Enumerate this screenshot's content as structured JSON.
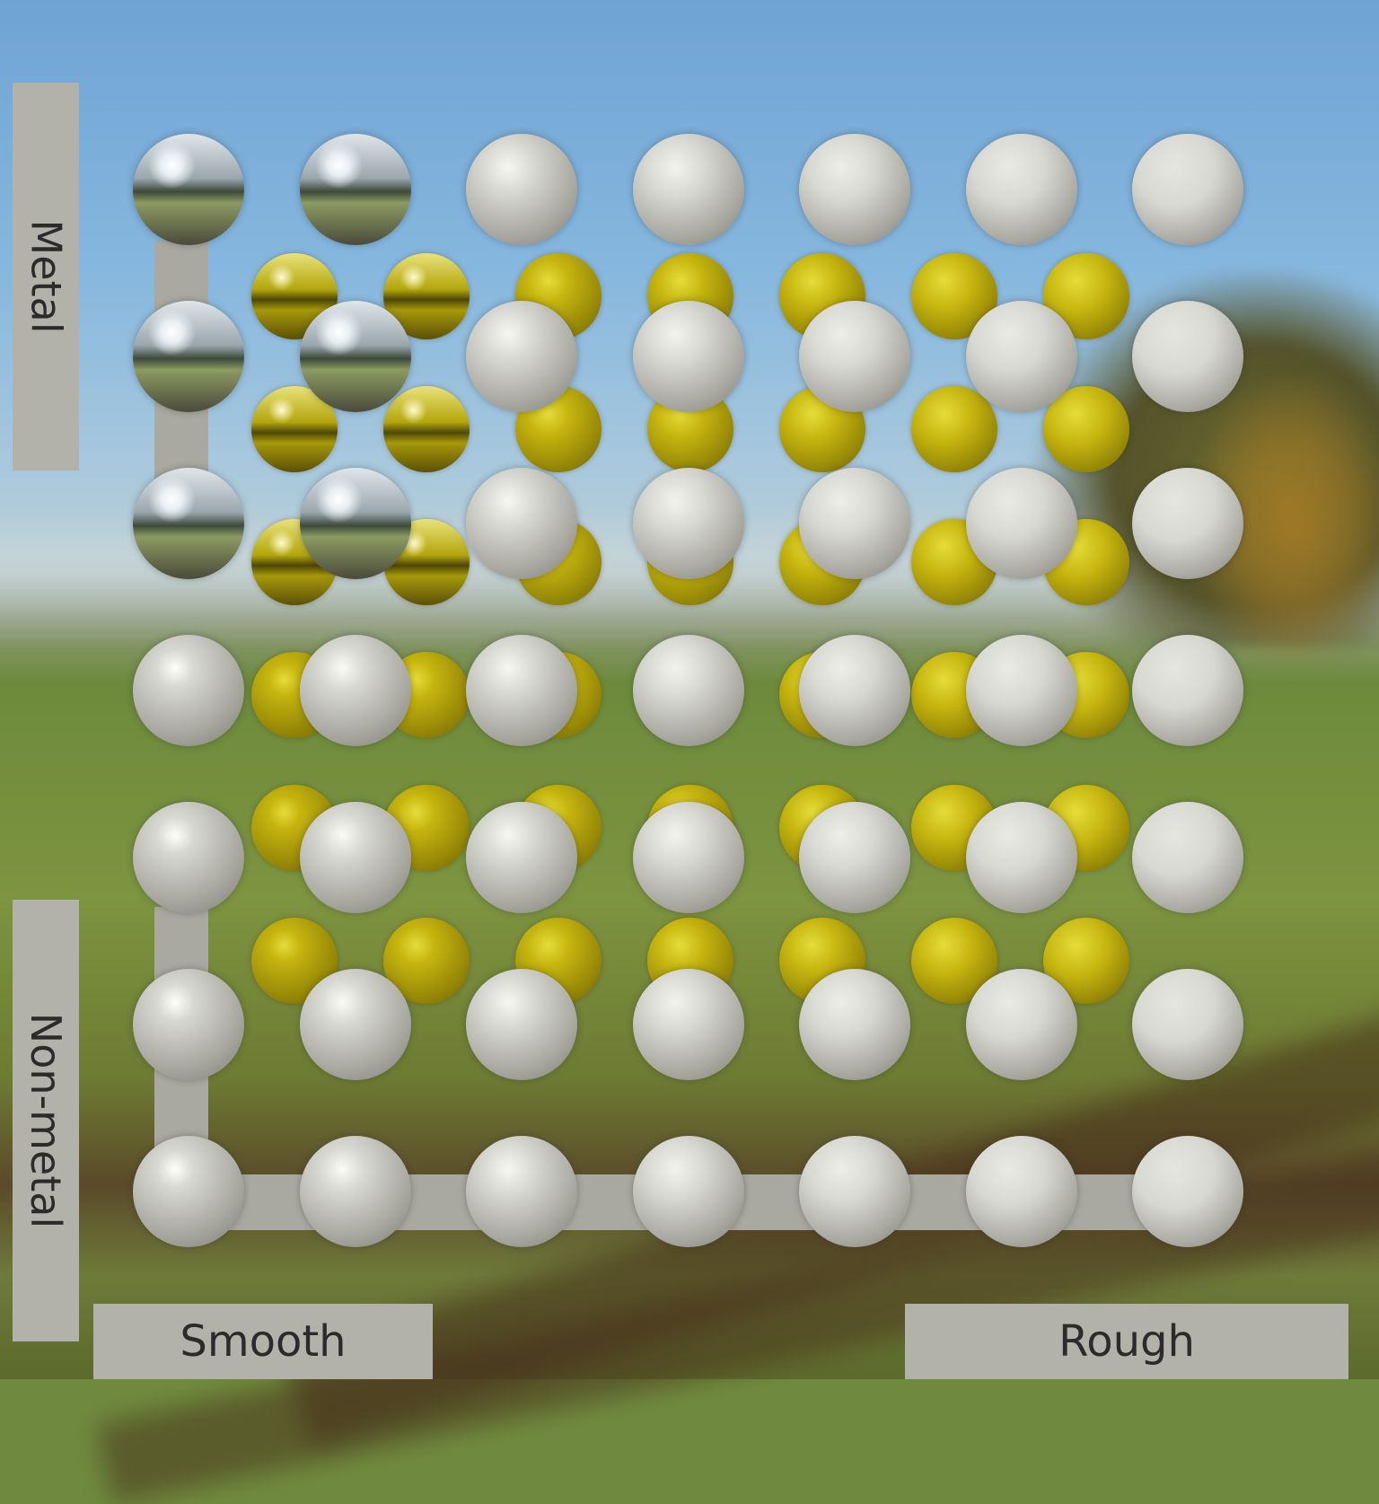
{
  "labels": {
    "metal": "Metal",
    "non_metal": "Non-metal",
    "smooth": "Smooth",
    "rough": "Rough"
  },
  "colors": {
    "silver": "#c9c9c4",
    "gold": "#b9a80f",
    "label_bg": "#b3b2aa",
    "label_text": "#2b2b2b"
  },
  "sphere_grid": {
    "silver_rows": 7,
    "silver_cols": 7,
    "gold_rows": 6,
    "gold_cols": 7,
    "roughness_steps": [
      0,
      0.17,
      0.33,
      0.5,
      0.67,
      0.83,
      1
    ],
    "metalness_steps": [
      1,
      0.83,
      0.67,
      0.5,
      0.33,
      0.17,
      0
    ]
  }
}
